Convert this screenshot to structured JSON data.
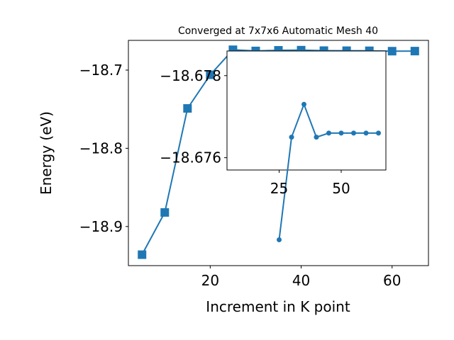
{
  "chart_data": [
    {
      "type": "line",
      "title": "Converged at 7x7x6 Automatic Mesh 40",
      "xlabel": "Increment in K point",
      "ylabel": "Energy (eV)",
      "xlim": [
        2,
        68
      ],
      "ylim": [
        -18.95,
        -18.662
      ],
      "xticks": [
        20,
        40,
        60
      ],
      "yticks": [
        -18.9,
        -18.8,
        -18.7
      ],
      "xtick_labels": [
        "20",
        "40",
        "60"
      ],
      "ytick_labels": [
        "−18.9",
        "−18.8",
        "−18.7"
      ],
      "marker": "square",
      "color": "#1f77b4",
      "grid": false,
      "series": [
        {
          "x": [
            5,
            10,
            15,
            20,
            25,
            30,
            35,
            40,
            45,
            50,
            55,
            60,
            65
          ],
          "y": [
            -18.936,
            -18.882,
            -18.749,
            -18.706,
            -18.674,
            -18.6755,
            -18.6747,
            -18.6745,
            -18.6751,
            -18.6752,
            -18.6753,
            -18.6758,
            -18.6757
          ]
        }
      ]
    },
    {
      "type": "line",
      "title": "",
      "xlabel": "",
      "ylabel": "",
      "xlim": [
        4,
        68
      ],
      "ylim": [
        -18.6757,
        -18.6786
      ],
      "xticks": [
        25,
        50
      ],
      "yticks": [
        -18.678,
        -18.676
      ],
      "xtick_labels": [
        "25",
        "50"
      ],
      "ytick_labels": [
        "−18.678",
        "−18.676"
      ],
      "marker": "circle",
      "color": "#1f77b4",
      "grid": false,
      "series": [
        {
          "x": [
            25,
            30,
            35,
            40,
            45,
            50,
            55,
            60,
            65
          ],
          "y": [
            -18.674,
            -18.6765,
            -18.6773,
            -18.6765,
            -18.6766,
            -18.6766,
            -18.6766,
            -18.6766,
            -18.6766
          ]
        }
      ]
    }
  ]
}
